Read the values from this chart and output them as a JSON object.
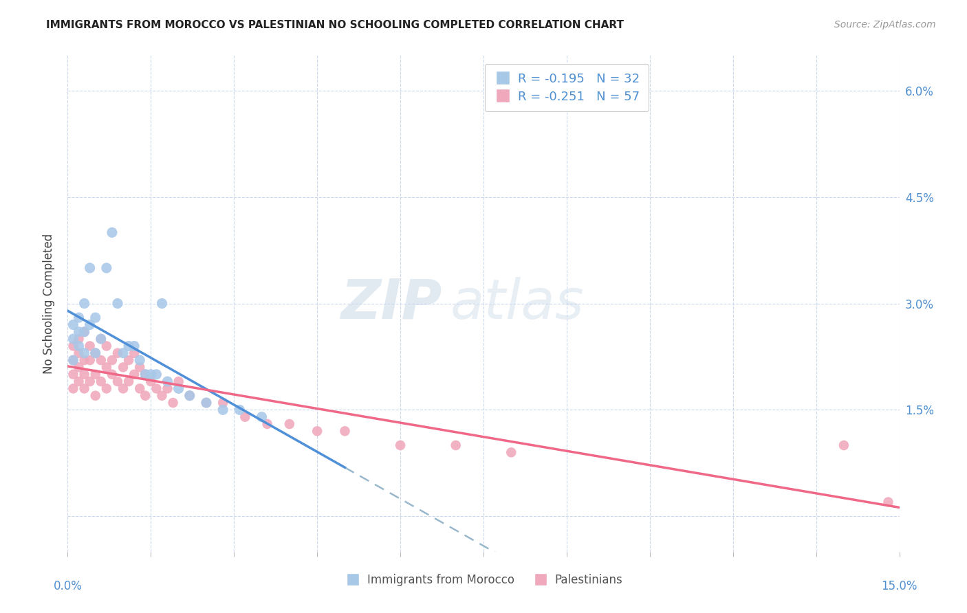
{
  "title": "IMMIGRANTS FROM MOROCCO VS PALESTINIAN NO SCHOOLING COMPLETED CORRELATION CHART",
  "source": "Source: ZipAtlas.com",
  "ylabel": "No Schooling Completed",
  "xmin": 0.0,
  "xmax": 0.15,
  "ymin": -0.005,
  "ymax": 0.065,
  "ytick_values": [
    0.0,
    0.015,
    0.03,
    0.045,
    0.06
  ],
  "ytick_labels": [
    "",
    "1.5%",
    "3.0%",
    "4.5%",
    "6.0%"
  ],
  "xtick_values": [
    0.0,
    0.015,
    0.03,
    0.045,
    0.06,
    0.075,
    0.09,
    0.105,
    0.12,
    0.135,
    0.15
  ],
  "color_morocco": "#a8c8e8",
  "color_palestinian": "#f0a8bc",
  "color_morocco_line": "#5090d8",
  "color_palestinian_line": "#f06888",
  "color_dashed": "#99b8cc",
  "watermark_zip": "ZIP",
  "watermark_atlas": "atlas",
  "morocco_x": [
    0.001,
    0.001,
    0.001,
    0.002,
    0.002,
    0.002,
    0.003,
    0.003,
    0.003,
    0.004,
    0.004,
    0.005,
    0.005,
    0.006,
    0.007,
    0.008,
    0.009,
    0.01,
    0.011,
    0.013,
    0.014,
    0.015,
    0.016,
    0.018,
    0.02,
    0.022,
    0.025,
    0.028,
    0.031,
    0.035,
    0.012,
    0.017
  ],
  "morocco_y": [
    0.025,
    0.027,
    0.022,
    0.024,
    0.026,
    0.028,
    0.023,
    0.026,
    0.03,
    0.027,
    0.035,
    0.028,
    0.023,
    0.025,
    0.035,
    0.04,
    0.03,
    0.023,
    0.024,
    0.022,
    0.02,
    0.02,
    0.02,
    0.019,
    0.018,
    0.017,
    0.016,
    0.015,
    0.015,
    0.014,
    0.024,
    0.03
  ],
  "palestinian_x": [
    0.001,
    0.001,
    0.001,
    0.001,
    0.002,
    0.002,
    0.002,
    0.002,
    0.003,
    0.003,
    0.003,
    0.003,
    0.004,
    0.004,
    0.004,
    0.005,
    0.005,
    0.005,
    0.006,
    0.006,
    0.006,
    0.007,
    0.007,
    0.007,
    0.008,
    0.008,
    0.009,
    0.009,
    0.01,
    0.01,
    0.011,
    0.011,
    0.012,
    0.012,
    0.013,
    0.013,
    0.014,
    0.014,
    0.015,
    0.016,
    0.017,
    0.018,
    0.019,
    0.02,
    0.022,
    0.025,
    0.028,
    0.032,
    0.036,
    0.04,
    0.045,
    0.05,
    0.06,
    0.07,
    0.08,
    0.14,
    0.148
  ],
  "palestinian_y": [
    0.022,
    0.02,
    0.018,
    0.024,
    0.021,
    0.019,
    0.023,
    0.025,
    0.02,
    0.022,
    0.018,
    0.026,
    0.022,
    0.019,
    0.024,
    0.02,
    0.023,
    0.017,
    0.022,
    0.019,
    0.025,
    0.021,
    0.018,
    0.024,
    0.02,
    0.022,
    0.019,
    0.023,
    0.021,
    0.018,
    0.022,
    0.019,
    0.02,
    0.023,
    0.018,
    0.021,
    0.017,
    0.02,
    0.019,
    0.018,
    0.017,
    0.018,
    0.016,
    0.019,
    0.017,
    0.016,
    0.016,
    0.014,
    0.013,
    0.013,
    0.012,
    0.012,
    0.01,
    0.01,
    0.009,
    0.01,
    0.002
  ],
  "line_r1": "R = -0.195",
  "line_n1": "N = 32",
  "line_r2": "R = -0.251",
  "line_n2": "N = 57",
  "legend1": "Immigrants from Morocco",
  "legend2": "Palestinians"
}
